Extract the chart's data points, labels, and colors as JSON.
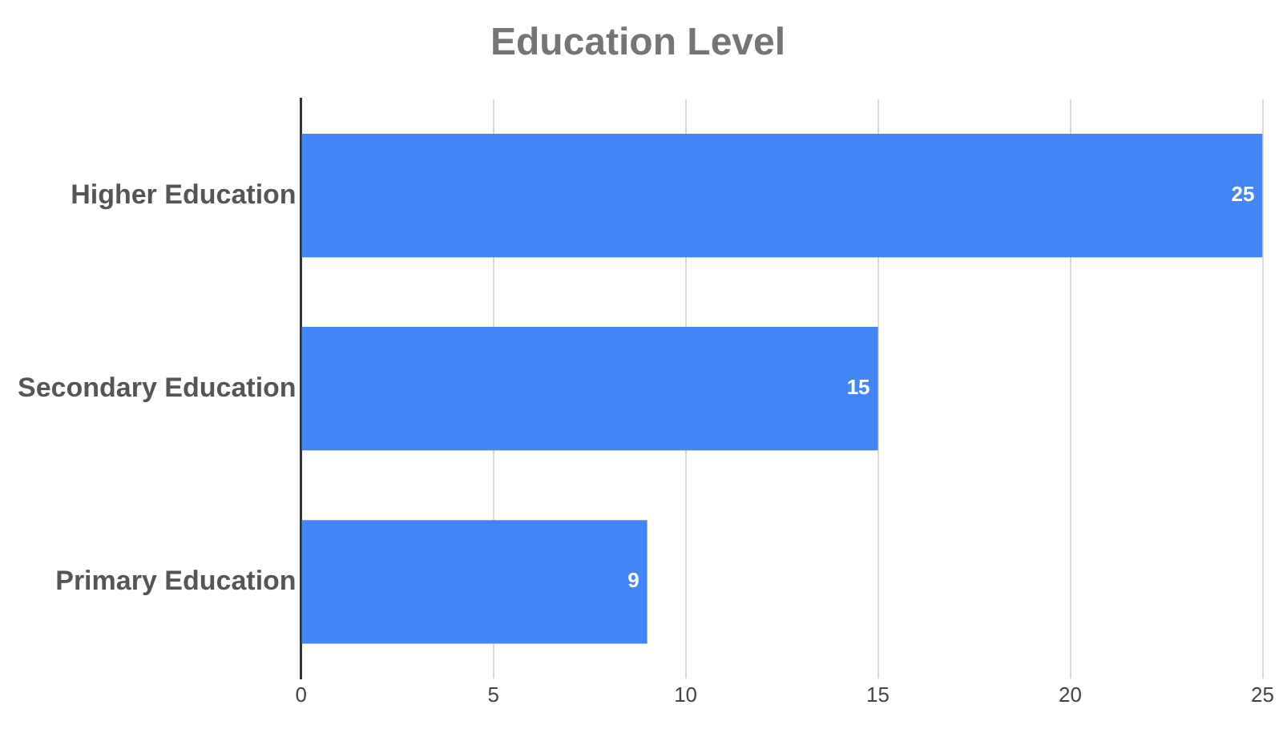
{
  "chart_data": {
    "type": "bar",
    "title": "Education Level",
    "orientation": "horizontal",
    "categories": [
      "Higher Education",
      "Secondary Education",
      "Primary Education"
    ],
    "values": [
      25,
      15,
      9
    ],
    "color": "#4285f4",
    "xlim": [
      0,
      25
    ],
    "xticks": [
      0,
      5,
      10,
      15,
      20,
      25
    ],
    "grid": "x",
    "data_labels": true,
    "legend": false
  }
}
